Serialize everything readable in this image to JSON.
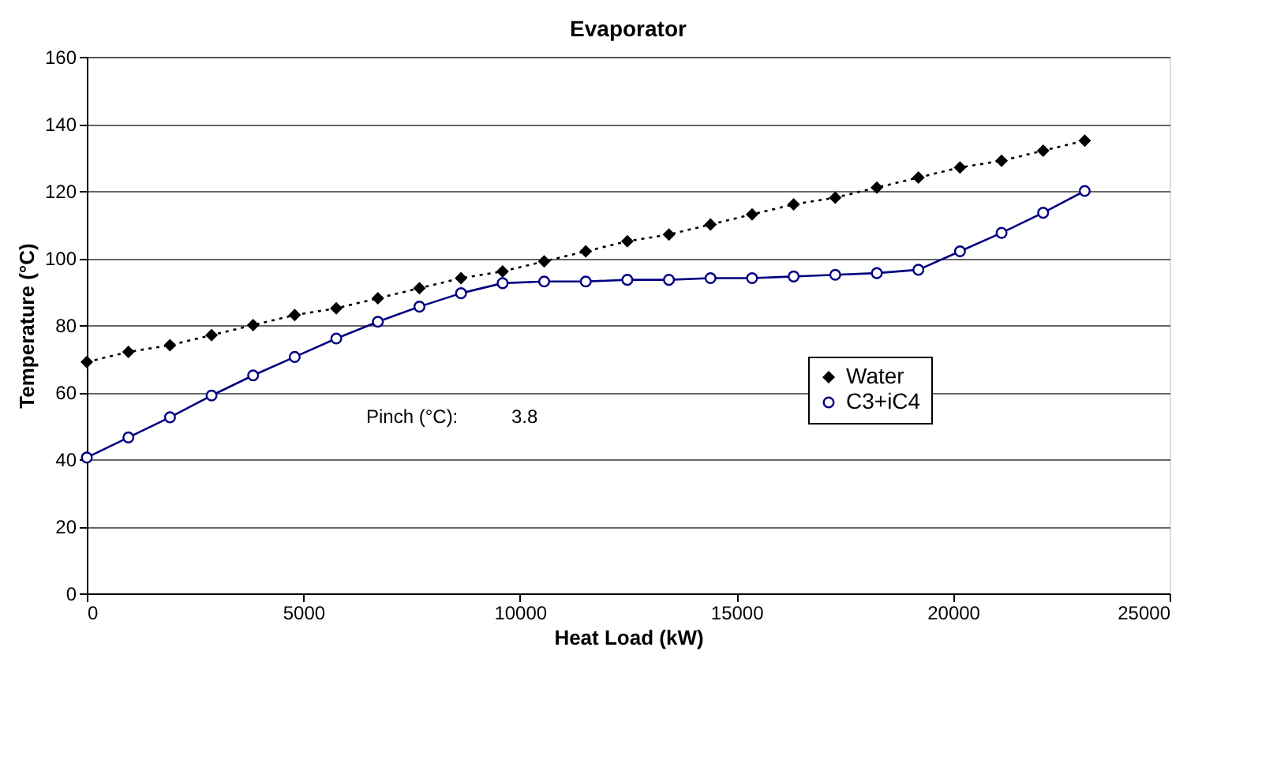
{
  "chart_data": {
    "type": "line",
    "title": "Evaporator",
    "xlabel": "Heat Load (kW)",
    "ylabel": "Temperature (°C)",
    "x": [
      0,
      960,
      1920,
      2880,
      3840,
      4800,
      5760,
      6720,
      7680,
      8640,
      9600,
      10560,
      11520,
      12480,
      13440,
      14400,
      15360,
      16320,
      17280,
      18240,
      19200,
      20160,
      21120,
      22080,
      23040
    ],
    "series": [
      {
        "name": "Water",
        "color": "#000000",
        "marker": "diamond",
        "line_style": "dotted",
        "values": [
          69,
          72,
          74,
          77,
          80,
          83,
          85,
          88,
          91,
          94,
          96,
          99,
          102,
          105,
          107,
          110,
          113,
          116,
          118,
          121,
          124,
          127,
          129,
          132,
          135
        ]
      },
      {
        "name": "C3+iC4",
        "color": "#000080",
        "marker": "circle",
        "line_style": "solid",
        "values": [
          40.5,
          46.5,
          52.5,
          59,
          65,
          70.5,
          76,
          81,
          85.5,
          89.5,
          92.5,
          93,
          93,
          93.5,
          93.5,
          94,
          94,
          94.5,
          95,
          95.5,
          96.5,
          102,
          107.5,
          113.5,
          120
        ]
      }
    ],
    "xlim": [
      0,
      25000
    ],
    "xticks": [
      0,
      5000,
      10000,
      15000,
      20000,
      25000
    ],
    "ylim": [
      0,
      160
    ],
    "yticks": [
      0,
      20,
      40,
      60,
      80,
      100,
      120,
      140,
      160
    ],
    "grid": "y",
    "legend": "right",
    "annotations": [
      "Pinch (°C):",
      "3.8"
    ]
  }
}
